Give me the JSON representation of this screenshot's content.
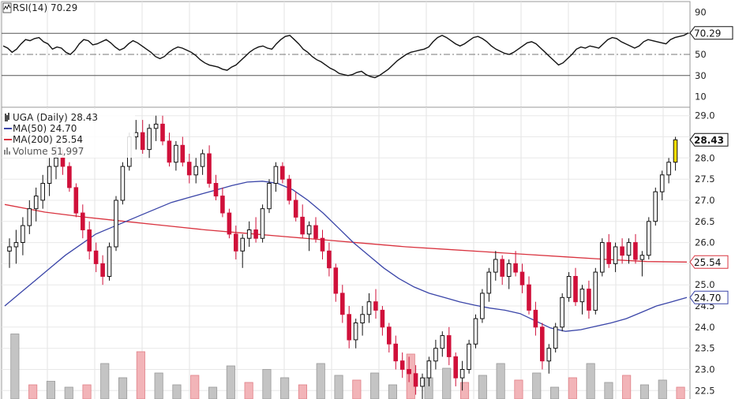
{
  "chart_data": [
    {
      "type": "line",
      "title": "RSI(14) 70.29",
      "y_ticks": [
        90,
        70,
        50,
        30,
        10
      ],
      "ylim": [
        0,
        100
      ],
      "reference_lines": [
        70,
        50,
        30
      ],
      "last_value_label": "70.29",
      "last_value": 70.29,
      "rsi_values": [
        58,
        56,
        52,
        55,
        60,
        64,
        63,
        65,
        66,
        62,
        60,
        55,
        57,
        56,
        52,
        50,
        54,
        60,
        64,
        63,
        59,
        60,
        62,
        64,
        61,
        57,
        54,
        56,
        60,
        63,
        61,
        58,
        55,
        52,
        48,
        46,
        48,
        52,
        55,
        57,
        56,
        54,
        52,
        49,
        45,
        42,
        40,
        39,
        38,
        36,
        35,
        38,
        40,
        44,
        48,
        52,
        55,
        57,
        58,
        56,
        55,
        60,
        64,
        67,
        68,
        64,
        60,
        55,
        52,
        48,
        45,
        43,
        40,
        37,
        35,
        32,
        31,
        30,
        31,
        33,
        34,
        31,
        29,
        28,
        30,
        33,
        36,
        40,
        44,
        47,
        50,
        52,
        53,
        54,
        55,
        57,
        62,
        66,
        68,
        66,
        63,
        60,
        58,
        60,
        63,
        66,
        67,
        65,
        62,
        58,
        55,
        53,
        51,
        50,
        52,
        55,
        58,
        61,
        62,
        60,
        56,
        52,
        48,
        44,
        40,
        42,
        46,
        50,
        55,
        57,
        56,
        58,
        57,
        56,
        60,
        64,
        66,
        65,
        62,
        60,
        58,
        56,
        58,
        62,
        64,
        63,
        62,
        61,
        60,
        64,
        66,
        67,
        68,
        70.29
      ]
    },
    {
      "type": "candlestick",
      "ticker_label": "UGA (Daily) 28.43",
      "ma50_label": "MA(50) 24.70",
      "ma200_label": "MA(200) 25.54",
      "volume_label": "Volume 51,997",
      "ylim": [
        22.3,
        29.2
      ],
      "y_ticks": [
        "29.0",
        "28.5",
        "28.0",
        "27.5",
        "27.0",
        "26.5",
        "26.0",
        "25.5",
        "25.0",
        "24.5",
        "24.0",
        "23.5",
        "23.0",
        "22.5"
      ],
      "last_price_label": "28.43",
      "last_price": 28.43,
      "ma200_label_value": "25.54",
      "ma200_value": 25.54,
      "ma50_label_value": "24.70",
      "ma50_value": 24.7,
      "ohlc": [
        [
          25.8,
          26.1,
          25.4,
          25.9
        ],
        [
          25.9,
          26.3,
          25.5,
          26.0
        ],
        [
          26.0,
          26.6,
          25.7,
          26.4
        ],
        [
          26.4,
          27.0,
          26.2,
          26.8
        ],
        [
          26.8,
          27.3,
          26.5,
          27.1
        ],
        [
          27.0,
          27.6,
          26.8,
          27.4
        ],
        [
          27.4,
          28.0,
          27.1,
          27.8
        ],
        [
          27.8,
          28.3,
          27.5,
          28.0
        ],
        [
          28.0,
          28.2,
          27.6,
          27.8
        ],
        [
          27.8,
          27.9,
          27.2,
          27.3
        ],
        [
          27.3,
          27.4,
          26.6,
          26.7
        ],
        [
          26.7,
          26.9,
          26.1,
          26.3
        ],
        [
          26.3,
          26.5,
          25.6,
          25.8
        ],
        [
          25.8,
          26.0,
          25.3,
          25.5
        ],
        [
          25.5,
          25.7,
          25.0,
          25.2
        ],
        [
          25.2,
          26.0,
          25.1,
          25.9
        ],
        [
          25.9,
          27.1,
          25.8,
          27.0
        ],
        [
          27.0,
          27.9,
          26.9,
          27.8
        ],
        [
          27.8,
          28.6,
          27.7,
          28.5
        ],
        [
          28.5,
          28.9,
          28.2,
          28.6
        ],
        [
          28.6,
          28.9,
          28.1,
          28.2
        ],
        [
          28.2,
          28.8,
          28.0,
          28.7
        ],
        [
          28.7,
          29.0,
          28.4,
          28.8
        ],
        [
          28.8,
          29.0,
          28.3,
          28.4
        ],
        [
          28.4,
          28.6,
          27.8,
          27.9
        ],
        [
          27.9,
          28.4,
          27.7,
          28.3
        ],
        [
          28.3,
          28.5,
          27.8,
          27.9
        ],
        [
          27.9,
          28.1,
          27.4,
          27.6
        ],
        [
          27.6,
          28.0,
          27.4,
          27.8
        ],
        [
          27.8,
          28.2,
          27.6,
          28.1
        ],
        [
          28.1,
          28.3,
          27.3,
          27.4
        ],
        [
          27.4,
          27.6,
          27.0,
          27.1
        ],
        [
          27.1,
          27.3,
          26.6,
          26.7
        ],
        [
          26.7,
          26.8,
          26.1,
          26.2
        ],
        [
          26.2,
          26.4,
          25.6,
          25.8
        ],
        [
          25.8,
          26.2,
          25.4,
          26.1
        ],
        [
          26.1,
          26.5,
          25.9,
          26.3
        ],
        [
          26.3,
          26.6,
          26.0,
          26.1
        ],
        [
          26.1,
          26.9,
          26.0,
          26.8
        ],
        [
          26.8,
          27.5,
          26.7,
          27.4
        ],
        [
          27.4,
          27.9,
          27.2,
          27.8
        ],
        [
          27.8,
          27.9,
          27.4,
          27.5
        ],
        [
          27.5,
          27.6,
          26.9,
          27.0
        ],
        [
          27.0,
          27.2,
          26.5,
          26.6
        ],
        [
          26.6,
          26.9,
          26.1,
          26.2
        ],
        [
          26.2,
          26.5,
          25.8,
          26.4
        ],
        [
          26.4,
          26.6,
          26.0,
          26.1
        ],
        [
          26.1,
          26.3,
          25.6,
          25.8
        ],
        [
          25.8,
          26.0,
          25.2,
          25.4
        ],
        [
          25.4,
          25.5,
          24.6,
          24.8
        ],
        [
          24.8,
          25.0,
          24.1,
          24.3
        ],
        [
          24.3,
          24.5,
          23.5,
          23.7
        ],
        [
          23.7,
          24.2,
          23.5,
          24.1
        ],
        [
          24.1,
          24.5,
          23.8,
          24.3
        ],
        [
          24.3,
          24.8,
          24.1,
          24.6
        ],
        [
          24.6,
          24.9,
          24.2,
          24.4
        ],
        [
          24.4,
          24.5,
          23.8,
          24.0
        ],
        [
          24.0,
          24.1,
          23.4,
          23.6
        ],
        [
          23.6,
          23.8,
          23.0,
          23.2
        ],
        [
          23.2,
          23.4,
          22.8,
          23.0
        ],
        [
          23.0,
          23.3,
          22.7,
          22.9
        ],
        [
          22.9,
          23.1,
          22.4,
          22.6
        ],
        [
          22.6,
          22.9,
          22.3,
          22.8
        ],
        [
          22.8,
          23.3,
          22.6,
          23.2
        ],
        [
          23.2,
          23.7,
          23.0,
          23.5
        ],
        [
          23.5,
          23.9,
          23.3,
          23.8
        ],
        [
          23.8,
          24.0,
          23.1,
          23.3
        ],
        [
          23.3,
          23.4,
          22.6,
          22.8
        ],
        [
          22.8,
          23.2,
          22.5,
          23.0
        ],
        [
          23.0,
          23.7,
          22.9,
          23.6
        ],
        [
          23.6,
          24.3,
          23.5,
          24.2
        ],
        [
          24.2,
          24.9,
          24.1,
          24.8
        ],
        [
          24.8,
          25.4,
          24.6,
          25.3
        ],
        [
          25.3,
          25.8,
          25.1,
          25.6
        ],
        [
          25.6,
          25.7,
          25.0,
          25.2
        ],
        [
          25.2,
          25.6,
          24.9,
          25.5
        ],
        [
          25.5,
          25.8,
          25.2,
          25.3
        ],
        [
          25.3,
          25.5,
          24.8,
          25.0
        ],
        [
          25.0,
          25.2,
          24.3,
          24.4
        ],
        [
          24.4,
          24.6,
          23.8,
          24.0
        ],
        [
          24.0,
          24.1,
          23.0,
          23.2
        ],
        [
          23.2,
          23.6,
          22.9,
          23.5
        ],
        [
          23.5,
          24.1,
          23.4,
          24.0
        ],
        [
          24.0,
          24.8,
          23.9,
          24.7
        ],
        [
          24.7,
          25.3,
          24.6,
          25.2
        ],
        [
          25.2,
          25.4,
          24.5,
          24.6
        ],
        [
          24.6,
          25.0,
          24.3,
          24.9
        ],
        [
          24.9,
          25.1,
          24.2,
          24.4
        ],
        [
          24.4,
          25.4,
          24.3,
          25.3
        ],
        [
          25.3,
          26.1,
          25.2,
          26.0
        ],
        [
          26.0,
          26.2,
          25.4,
          25.5
        ],
        [
          25.5,
          26.0,
          25.3,
          25.9
        ],
        [
          25.9,
          26.1,
          25.5,
          25.7
        ],
        [
          25.7,
          26.1,
          25.5,
          26.0
        ],
        [
          26.0,
          26.2,
          25.5,
          25.6
        ],
        [
          25.6,
          25.8,
          25.2,
          25.7
        ],
        [
          25.7,
          26.6,
          25.6,
          26.5
        ],
        [
          26.5,
          27.3,
          26.4,
          27.2
        ],
        [
          27.2,
          27.7,
          27.0,
          27.6
        ],
        [
          27.6,
          28.0,
          27.4,
          27.9
        ],
        [
          27.9,
          28.5,
          27.7,
          28.43
        ]
      ],
      "ma50": [
        24.5,
        24.8,
        25.1,
        25.4,
        25.7,
        25.95,
        26.2,
        26.35,
        26.5,
        26.65,
        26.8,
        26.95,
        27.05,
        27.15,
        27.25,
        27.35,
        27.43,
        27.45,
        27.4,
        27.25,
        27.0,
        26.7,
        26.35,
        26.0,
        25.7,
        25.4,
        25.15,
        24.95,
        24.8,
        24.7,
        24.6,
        24.52,
        24.45,
        24.4,
        24.32,
        24.15,
        23.98,
        23.9,
        23.94,
        24.02,
        24.1,
        24.2,
        24.35,
        24.5,
        24.6,
        24.7
      ],
      "ma200": [
        26.9,
        26.72,
        26.6,
        26.5,
        26.4,
        26.3,
        26.22,
        26.14,
        26.06,
        25.98,
        25.9,
        25.84,
        25.78,
        25.72,
        25.66,
        25.6,
        25.55,
        25.54
      ],
      "volume": [
        0.55,
        0.12,
        0.15,
        0.1,
        0.12,
        0.3,
        0.18,
        0.4,
        0.22,
        0.12,
        0.2,
        0.1,
        0.28,
        0.14,
        0.25,
        0.18,
        0.12,
        0.3,
        0.2,
        0.16,
        0.22,
        0.12,
        0.38,
        0.18,
        0.26,
        0.14,
        0.2,
        0.3,
        0.16,
        0.22,
        0.1,
        0.18,
        0.3,
        0.14,
        0.2,
        0.12,
        0.16,
        0.1
      ]
    }
  ]
}
